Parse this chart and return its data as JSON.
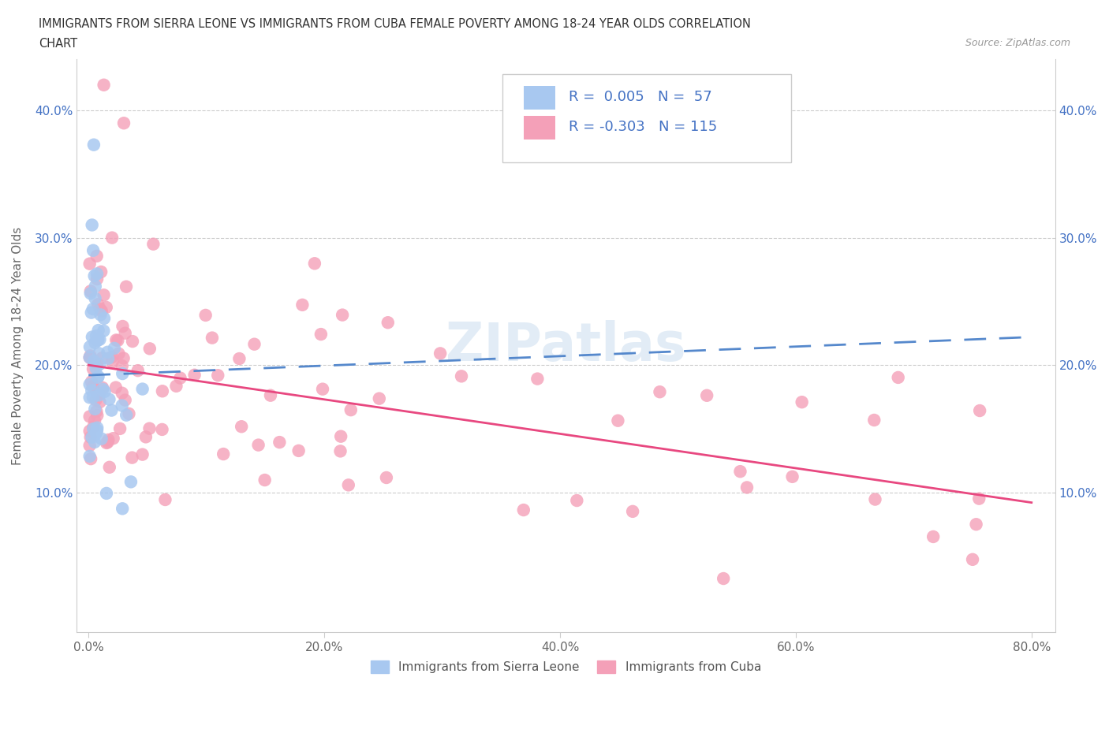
{
  "title_line1": "IMMIGRANTS FROM SIERRA LEONE VS IMMIGRANTS FROM CUBA FEMALE POVERTY AMONG 18-24 YEAR OLDS CORRELATION",
  "title_line2": "CHART",
  "source": "Source: ZipAtlas.com",
  "ylabel": "Female Poverty Among 18-24 Year Olds",
  "xlim": [
    -0.01,
    0.82
  ],
  "ylim": [
    -0.01,
    0.44
  ],
  "xticks": [
    0.0,
    0.2,
    0.4,
    0.6,
    0.8
  ],
  "xticklabels": [
    "0.0%",
    "20.0%",
    "40.0%",
    "60.0%",
    "80.0%"
  ],
  "yticks": [
    0.1,
    0.2,
    0.3,
    0.4
  ],
  "yticklabels": [
    "10.0%",
    "20.0%",
    "30.0%",
    "40.0%"
  ],
  "sierra_leone_color": "#a8c8f0",
  "cuba_color": "#f4a0b8",
  "trend_blue_color": "#5588cc",
  "trend_pink_color": "#e84880",
  "sierra_leone_R": 0.005,
  "sierra_leone_N": 57,
  "cuba_R": -0.303,
  "cuba_N": 115,
  "watermark": "ZIPatlas",
  "legend_label_1": "Immigrants from Sierra Leone",
  "legend_label_2": "Immigrants from Cuba",
  "sl_trend_x0": 0.0,
  "sl_trend_y0": 0.192,
  "sl_trend_x1": 0.8,
  "sl_trend_y1": 0.222,
  "cuba_trend_x0": 0.0,
  "cuba_trend_y0": 0.2,
  "cuba_trend_x1": 0.8,
  "cuba_trend_y1": 0.092
}
